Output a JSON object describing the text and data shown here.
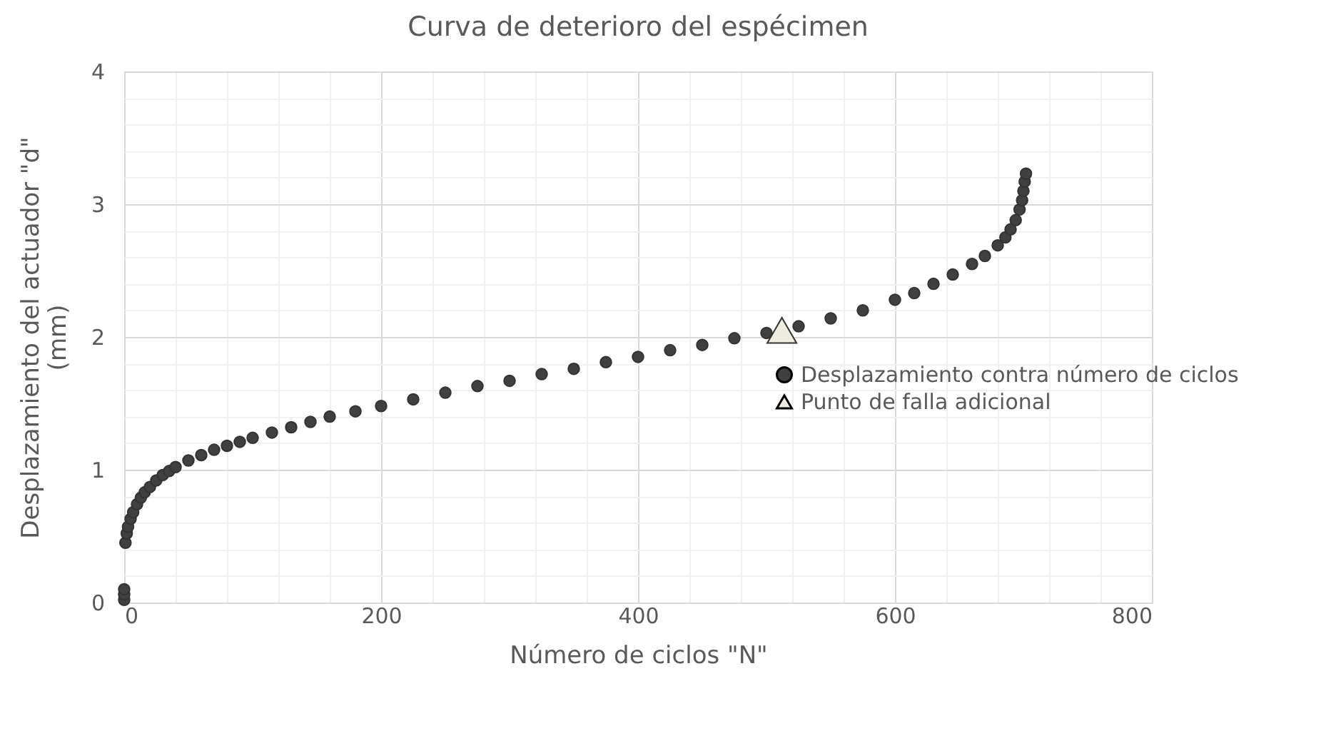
{
  "chart_data": {
    "type": "scatter",
    "title": "Curva de deterioro del espécimen",
    "xlabel": "Número de ciclos \"N\"",
    "ylabel": "Desplazamiento del actuador \"d\" (mm)",
    "xlim": [
      0,
      800
    ],
    "xticks": [
      0,
      200,
      400,
      600,
      800
    ],
    "ylim": [
      0,
      4
    ],
    "yticks": [
      0,
      1,
      2,
      3,
      4
    ],
    "grid": true,
    "legend": "right",
    "series": [
      {
        "name": "Desplazamiento contra número de ciclos",
        "color": "#404040",
        "marker": "circle",
        "x": [
          0,
          0,
          0,
          1,
          2,
          3,
          5,
          7,
          10,
          13,
          16,
          20,
          25,
          30,
          35,
          40,
          50,
          60,
          70,
          80,
          90,
          100,
          115,
          130,
          145,
          160,
          180,
          200,
          225,
          250,
          275,
          300,
          325,
          350,
          375,
          400,
          425,
          450,
          475,
          500,
          525,
          550,
          575,
          600,
          615,
          630,
          645,
          660,
          670,
          680,
          686,
          690,
          694,
          697,
          699,
          700,
          701,
          702
        ],
        "values": [
          0.02,
          0.06,
          0.1,
          0.45,
          0.52,
          0.57,
          0.63,
          0.68,
          0.74,
          0.79,
          0.83,
          0.87,
          0.92,
          0.96,
          0.99,
          1.02,
          1.07,
          1.11,
          1.15,
          1.18,
          1.21,
          1.24,
          1.28,
          1.32,
          1.36,
          1.4,
          1.44,
          1.48,
          1.53,
          1.58,
          1.63,
          1.67,
          1.72,
          1.76,
          1.81,
          1.85,
          1.9,
          1.94,
          1.99,
          2.03,
          2.08,
          2.14,
          2.2,
          2.28,
          2.33,
          2.4,
          2.47,
          2.55,
          2.61,
          2.69,
          2.75,
          2.81,
          2.88,
          2.96,
          3.03,
          3.1,
          3.17,
          3.23
        ]
      },
      {
        "name": "Punto de falla adicional",
        "color": "#eeece1",
        "marker": "triangle",
        "x": [
          512
        ],
        "values": [
          2.05
        ]
      }
    ]
  }
}
